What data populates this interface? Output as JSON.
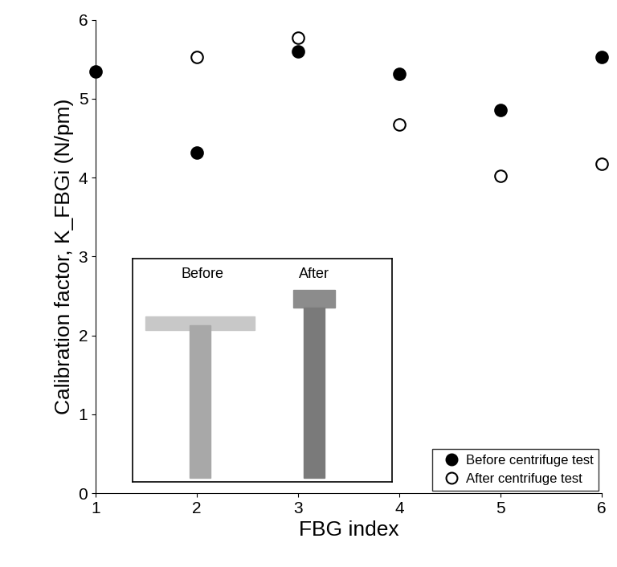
{
  "chart_data": {
    "type": "scatter",
    "x_label": "FBG index",
    "y_label": "Calibration factor, K_FBGi (N/pm)",
    "x": [
      1,
      2,
      3,
      4,
      5,
      6
    ],
    "series": [
      {
        "name": "Before centrifuge test",
        "color": "#000000",
        "marker": "filled_circle",
        "values": [
          5.35,
          4.32,
          5.6,
          5.32,
          4.86,
          5.53
        ]
      },
      {
        "name": "After centrifuge test",
        "color": "#000000",
        "marker": "open_circle",
        "values": [
          null,
          5.53,
          5.77,
          4.67,
          4.02,
          4.18
        ]
      }
    ],
    "xlim": [
      1,
      6
    ],
    "xticks": [
      1,
      2,
      3,
      4,
      5,
      6
    ],
    "ylim": [
      0,
      6
    ],
    "yticks": [
      0,
      1,
      2,
      3,
      4,
      5,
      6
    ],
    "grid": false,
    "legend": "lower right",
    "annotations": [
      "Before",
      "After"
    ]
  }
}
